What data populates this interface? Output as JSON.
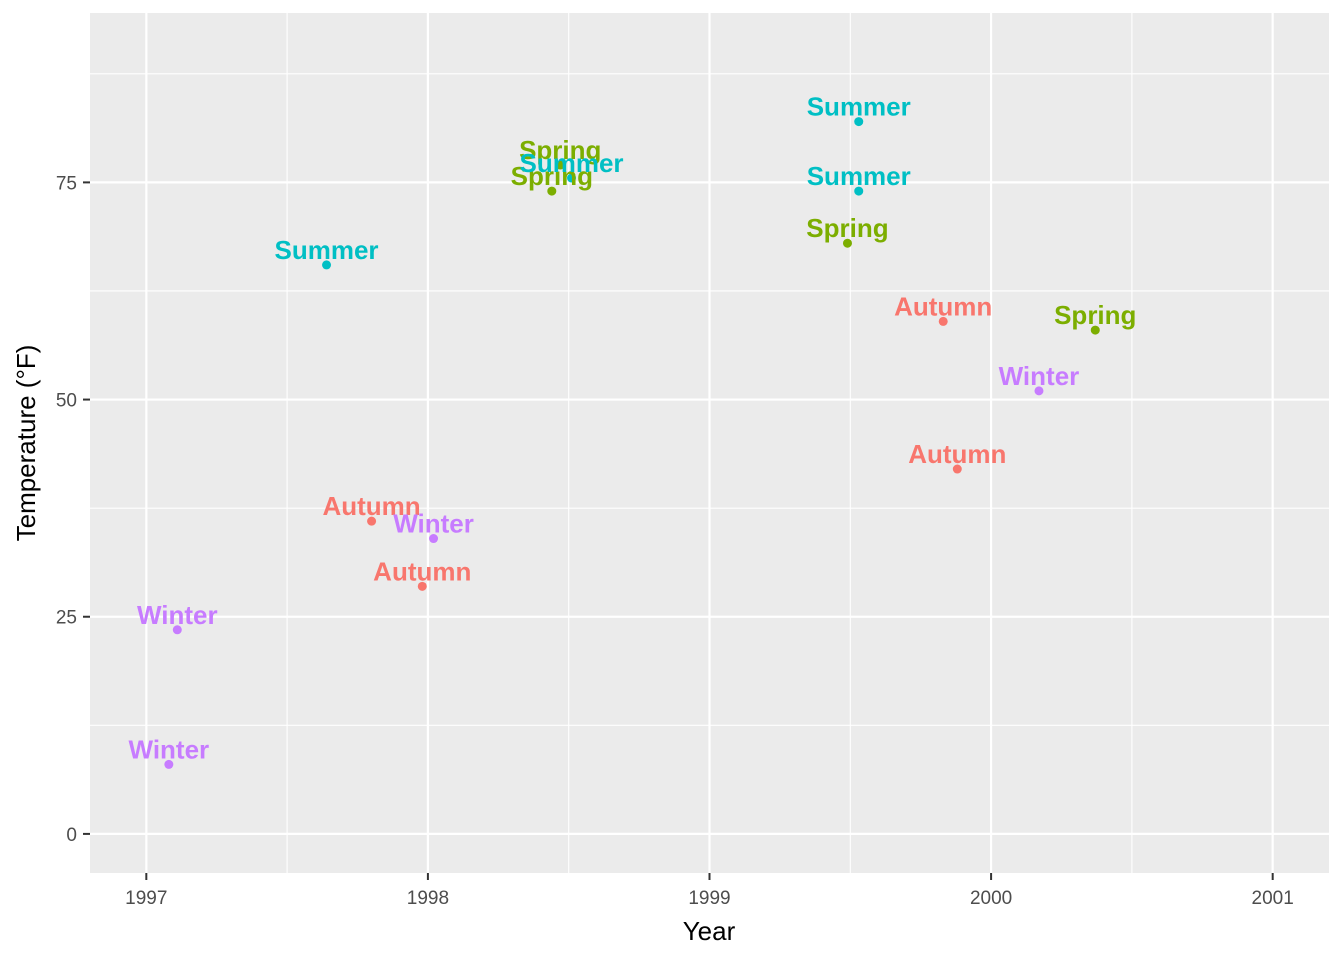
{
  "chart_data": {
    "type": "scatter",
    "xlabel": "Year",
    "ylabel": "Temperature (°F)",
    "xlim": [
      1996.8,
      2001.2
    ],
    "ylim": [
      -4.5,
      94.5
    ],
    "x_ticks": [
      1997,
      1998,
      1999,
      2000,
      2001
    ],
    "x_tick_labels": [
      "1997",
      "1998",
      "1999",
      "2000",
      "2001"
    ],
    "x_minor_ticks": [
      1997.5,
      1998.5,
      1999.5,
      2000.5
    ],
    "y_ticks": [
      0,
      25,
      50,
      75
    ],
    "y_tick_labels": [
      "0",
      "25",
      "50",
      "75"
    ],
    "y_minor_ticks": [
      12.5,
      37.5,
      62.5,
      87.5
    ],
    "grid": true,
    "legend": "none",
    "colors": {
      "Autumn": "#F8766D",
      "Spring": "#7CAE00",
      "Summer": "#00BFC4",
      "Winter": "#C77CFF"
    },
    "points": [
      {
        "x": 1997.08,
        "y": 8,
        "season": "Winter"
      },
      {
        "x": 1997.11,
        "y": 23.5,
        "season": "Winter"
      },
      {
        "x": 1997.64,
        "y": 65.5,
        "season": "Summer"
      },
      {
        "x": 1997.8,
        "y": 36,
        "season": "Autumn"
      },
      {
        "x": 1997.98,
        "y": 28.5,
        "season": "Autumn"
      },
      {
        "x": 1998.02,
        "y": 34,
        "season": "Winter"
      },
      {
        "x": 1998.44,
        "y": 74,
        "season": "Spring"
      },
      {
        "x": 1998.47,
        "y": 77,
        "season": "Spring"
      },
      {
        "x": 1998.51,
        "y": 75.5,
        "season": "Summer"
      },
      {
        "x": 1999.49,
        "y": 68,
        "season": "Spring"
      },
      {
        "x": 1999.53,
        "y": 74,
        "season": "Summer"
      },
      {
        "x": 1999.53,
        "y": 82,
        "season": "Summer"
      },
      {
        "x": 1999.83,
        "y": 59,
        "season": "Autumn"
      },
      {
        "x": 1999.88,
        "y": 42,
        "season": "Autumn"
      },
      {
        "x": 2000.17,
        "y": 51,
        "season": "Winter"
      },
      {
        "x": 2000.37,
        "y": 58,
        "season": "Spring"
      }
    ]
  }
}
